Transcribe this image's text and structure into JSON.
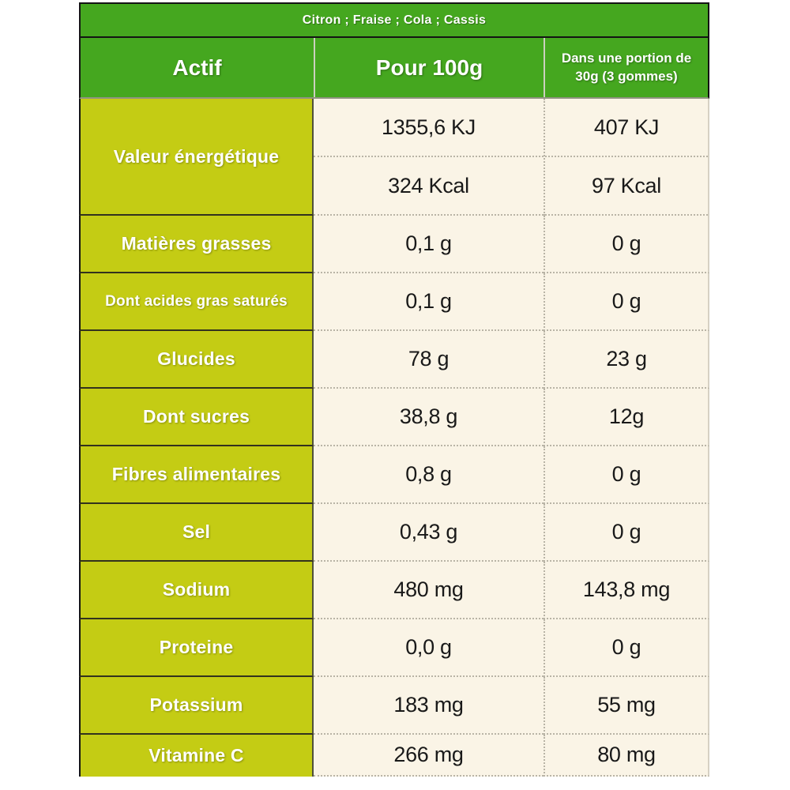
{
  "colors": {
    "header_green": "#45a71f",
    "label_yellow": "#c4cc14",
    "value_cream": "#faf4e6",
    "text_light": "#ffffff",
    "text_dark": "#191919",
    "dotted_border": "#b9b4a6",
    "outer_border": "#141414"
  },
  "flavor_bar": {
    "text": "Citron ; Fraise ; Cola ; Cassis"
  },
  "table": {
    "columns": [
      "Actif",
      "Pour 100g",
      "Dans une portion de 30g (3 gommes)"
    ],
    "energy_row": {
      "label": "Valeur énergétique",
      "per_100g_kj": "1355,6 KJ",
      "per_100g_kcal": "324 Kcal",
      "per_portion_kj": "407 KJ",
      "per_portion_kcal": "97 Kcal"
    },
    "rows": [
      {
        "label": "Matières grasses",
        "per_100g": "0,1 g",
        "per_portion": "0 g"
      },
      {
        "label": "Dont acides gras saturés",
        "per_100g": "0,1 g",
        "per_portion": "0 g"
      },
      {
        "label": "Glucides",
        "per_100g": "78 g",
        "per_portion": "23 g"
      },
      {
        "label": "Dont sucres",
        "per_100g": "38,8 g",
        "per_portion": "12g"
      },
      {
        "label": "Fibres alimentaires",
        "per_100g": "0,8 g",
        "per_portion": "0 g"
      },
      {
        "label": "Sel",
        "per_100g": "0,43 g",
        "per_portion": "0 g"
      },
      {
        "label": "Sodium",
        "per_100g": "480 mg",
        "per_portion": "143,8 mg"
      },
      {
        "label": "Proteine",
        "per_100g": "0,0 g",
        "per_portion": "0 g"
      },
      {
        "label": "Potassium",
        "per_100g": "183 mg",
        "per_portion": "55 mg"
      },
      {
        "label": "Vitamine C",
        "per_100g": "266 mg",
        "per_portion": "80 mg"
      }
    ]
  }
}
